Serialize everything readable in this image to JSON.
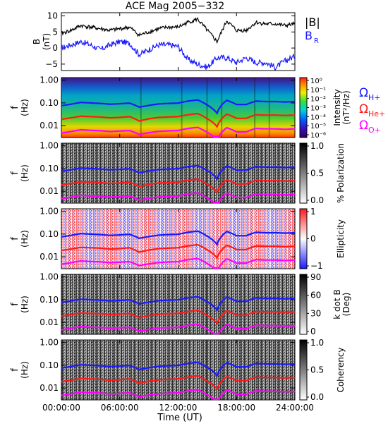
{
  "title": "ACE Mag 2005−332",
  "x_axis": {
    "label": "Time (UT)",
    "tick_labels": [
      "00:00:00",
      "06:00:00",
      "12:00:00",
      "18:00:00",
      "24:00:00"
    ],
    "range_hours": [
      0,
      24
    ],
    "tick_values_hours": [
      0,
      6,
      12,
      18,
      24
    ]
  },
  "freq_axis": {
    "ylabel": "f (Hz)",
    "ylabel_line1": "f",
    "ylabel_line2": "(Hz)",
    "tick_labels": [
      "1.00",
      "0.10",
      "0.01"
    ],
    "tick_values": [
      1.0,
      0.1,
      0.01
    ],
    "range_hz": [
      0.003,
      1.3
    ],
    "scale": "log"
  },
  "colors": {
    "omega_h": "#1a1aff",
    "omega_he": "#ff1a1a",
    "omega_o": "#ff00ff",
    "b_total": "#000000",
    "b_r": "#1a1aff"
  },
  "panel1": {
    "ylabel": "B (nT)",
    "ylabel_line1": "B",
    "ylabel_line2": "(nT)",
    "tick_labels": [
      "10",
      "5",
      "0",
      "−5"
    ],
    "tick_values": [
      10,
      5,
      0,
      -5
    ],
    "ylim": [
      -7,
      11
    ],
    "legend": {
      "b_total_label": "|B|",
      "b_r_label_main": "B",
      "b_r_label_sub": "R"
    }
  },
  "panel2": {
    "colorbar_label": "Intensity (nT²/Hz)",
    "colorbar_label_line1": "Intensity",
    "colorbar_label_line2": "(nT²/Hz)",
    "colorbar_ticks": [
      "10⁰",
      "10⁻¹",
      "10⁻²",
      "10⁻³",
      "10⁻⁴",
      "10⁻⁵",
      "10⁻⁶"
    ],
    "colorbar_scale": "log",
    "colorbar_range": [
      1e-06,
      1
    ],
    "legend": [
      {
        "symbol": "Ω",
        "sub": "H+"
      },
      {
        "symbol": "Ω",
        "sub": "He+"
      },
      {
        "symbol": "Ω",
        "sub": "O+"
      }
    ]
  },
  "panel3": {
    "colorbar_label": "% Polarization",
    "colorbar_ticks": [
      "1.0",
      "0.5",
      "0.0"
    ],
    "colorbar_range": [
      0,
      1
    ]
  },
  "panel4": {
    "colorbar_label": "Ellipticity",
    "colorbar_ticks": [
      "1",
      "0",
      "−1"
    ],
    "colorbar_range": [
      -1,
      1
    ]
  },
  "panel5": {
    "colorbar_label": "k dot B (Deg)",
    "colorbar_label_line1": "k dot B",
    "colorbar_label_line2": "(Deg)",
    "colorbar_ticks": [
      "90",
      "60",
      "30",
      "0"
    ],
    "colorbar_range": [
      0,
      90
    ]
  },
  "panel6": {
    "colorbar_label": "Coherency",
    "colorbar_ticks": [
      "1.0",
      "0.5",
      "0.0"
    ],
    "colorbar_range": [
      0,
      1
    ]
  },
  "chart_data": {
    "type": "line",
    "title": "ACE Mag 2005−332",
    "xlabel": "Time (UT)",
    "x_hours": [
      0,
      1,
      2,
      3,
      4,
      5,
      6,
      7,
      8,
      9,
      10,
      11,
      12,
      13,
      14,
      15,
      16,
      17,
      18,
      19,
      20,
      21,
      22,
      23,
      24
    ],
    "field": {
      "ylabel": "B (nT)",
      "ylim": [
        -7,
        11
      ],
      "series": [
        {
          "name": "|B|",
          "values": [
            4.5,
            5.5,
            7,
            6.5,
            6,
            5.5,
            6,
            6.5,
            4,
            5,
            6,
            6.5,
            6.5,
            8,
            9,
            5.5,
            2,
            8.5,
            5.5,
            5.5,
            8,
            7.5,
            7.5,
            7,
            7.5
          ]
        },
        {
          "name": "B_R",
          "values": [
            0,
            1,
            2,
            1,
            -0.5,
            1,
            2,
            1.5,
            -2,
            -0.5,
            1,
            1,
            0.5,
            -3.5,
            -5,
            -6,
            -3,
            -3,
            -4.5,
            -3,
            -4.5,
            -4.5,
            -6,
            -4,
            -2.5
          ]
        }
      ]
    },
    "gyrofrequencies": {
      "ylabel": "f (Hz)",
      "scale": "log",
      "ylim": [
        0.003,
        1.3
      ],
      "series": [
        {
          "name": "ΩH+",
          "values": [
            0.075,
            0.088,
            0.105,
            0.1,
            0.095,
            0.088,
            0.092,
            0.098,
            0.065,
            0.078,
            0.09,
            0.095,
            0.098,
            0.12,
            0.135,
            0.08,
            0.035,
            0.13,
            0.085,
            0.085,
            0.12,
            0.115,
            0.115,
            0.11,
            0.115
          ]
        },
        {
          "name": "ΩHe+",
          "values": [
            0.019,
            0.022,
            0.026,
            0.025,
            0.024,
            0.022,
            0.023,
            0.025,
            0.016,
            0.02,
            0.023,
            0.024,
            0.025,
            0.03,
            0.034,
            0.02,
            0.009,
            0.032,
            0.021,
            0.021,
            0.03,
            0.029,
            0.029,
            0.028,
            0.029
          ]
        },
        {
          "name": "ΩO+",
          "values": [
            0.0047,
            0.0055,
            0.0066,
            0.0062,
            0.006,
            0.0055,
            0.0058,
            0.0061,
            0.0041,
            0.0049,
            0.0056,
            0.0059,
            0.0061,
            0.0075,
            0.0084,
            0.005,
            0.0022,
            0.0081,
            0.0053,
            0.0053,
            0.0075,
            0.0072,
            0.0072,
            0.0069,
            0.0072
          ]
        }
      ]
    },
    "panels": [
      "Intensity (nT²/Hz)",
      "% Polarization",
      "Ellipticity",
      "k dot B (Deg)",
      "Coherency"
    ],
    "grid": false
  }
}
